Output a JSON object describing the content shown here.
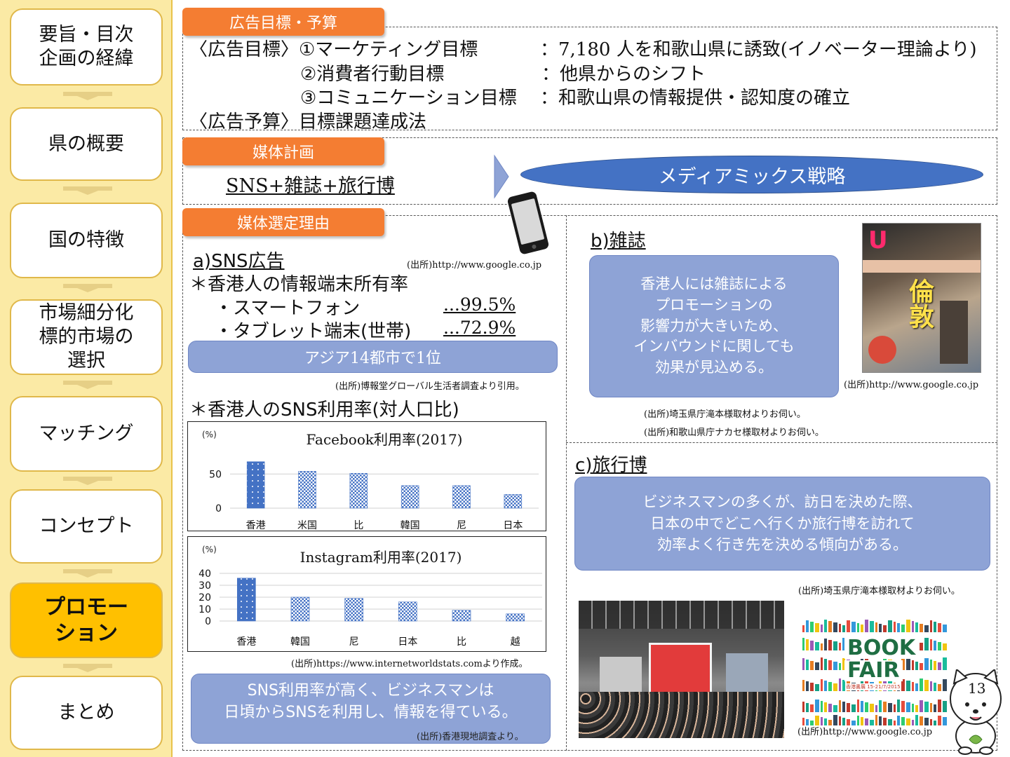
{
  "sidebar": {
    "items": [
      {
        "label": "要旨・目次\n企画の経緯",
        "active": false
      },
      {
        "label": "県の概要",
        "active": false
      },
      {
        "label": "国の特徴",
        "active": false
      },
      {
        "label": "市場細分化\n標的市場の\n選択",
        "active": false
      },
      {
        "label": "マッチング",
        "active": false
      },
      {
        "label": "コンセプト",
        "active": false
      },
      {
        "label": "プロモー\nション",
        "active": true
      },
      {
        "label": "まとめ",
        "active": false
      }
    ]
  },
  "goals": {
    "tag": "広告目標・予算",
    "row1_label": "〈広告目標〉①マーケティング目標",
    "row1_value": "：7,180 人を和歌山県に誘致(イノベーター理論より)",
    "row2_label": "②消費者行動目標",
    "row2_value": "：他県からのシフト",
    "row3_label": "③コミュニケーション目標",
    "row3_value": "：和歌山県の情報提供・認知度の確立",
    "row4": "〈広告予算〉目標課題達成法"
  },
  "media": {
    "tag": "媒体計画",
    "plan": "SNS+雑誌+旅行博",
    "strategy": "メディアミックス戦略"
  },
  "reasons": {
    "tag": "媒体選定理由",
    "sns": {
      "title": "a)SNS広告",
      "phone_source": "(出所)http://www.google.co.jp",
      "ownership_heading": "＊香港人の情報端末所有率",
      "smartphone_label": "・スマートフォン",
      "smartphone_value": "...99.5%",
      "tablet_label": "・タブレット端末(世帯)",
      "tablet_value": "...72.9%",
      "rank_box": "アジア14都市で1位",
      "rank_source": "(出所)博報堂グローバル生活者調査より引用。",
      "usage_heading": "＊香港人のSNS利用率(対人口比)",
      "chart_source": "(出所)https://www.internetworldstats.comより作成。",
      "summary": "SNS利用率が高く、ビジネスマンは\n日頃からSNSを利用し、情報を得ている。",
      "summary_source": "(出所)香港現地調査より。"
    },
    "magazine": {
      "title": "b)雑誌",
      "body": "香港人には雑誌による\nプロモーションの\n影響力が大きいため、\nインバウンドに関しても\n効果が見込める。",
      "image_source": "(出所)http://www.google.co.jp",
      "source1": "(出所)埼玉県庁滝本様取材よりお伺い。",
      "source2": "(出所)和歌山県庁ナカセ様取材よりお伺い。",
      "cover_title": "U",
      "cover_text": "倫敦"
    },
    "fair": {
      "title": "c)旅行博",
      "body": "ビジネスマンの多くが、訪日を決めた際、\n日本の中でどこへ行くか旅行博を訪れて\n効率よく行き先を決める傾向がある。",
      "source1": "(出所)埼玉県庁滝本様取材よりお伺い。",
      "image_source": "(出所)http://www.google.co.jp",
      "poster_line1": "BOOK",
      "poster_line2": "FAIR",
      "poster_sub": "香港書展 15-21/7/2015"
    }
  },
  "page_number": "13",
  "colors": {
    "accent_orange": "#f47d32",
    "sidebar_bg": "#fbeaa5",
    "active_nav": "#ffc000",
    "ellipse_blue": "#4472c4",
    "box_blue": "#8ea3d6"
  },
  "chart_data": [
    {
      "type": "bar",
      "title": "Facebook利用率(2017)",
      "unit_label": "(%)",
      "categories": [
        "香港",
        "米国",
        "比",
        "韓国",
        "尼",
        "日本"
      ],
      "values": [
        68,
        54,
        51,
        33,
        33,
        20
      ],
      "ylim": [
        0,
        80
      ],
      "yticks": [
        0,
        50
      ],
      "highlight_index": 0,
      "grid": true
    },
    {
      "type": "bar",
      "title": "Instagram利用率(2017)",
      "unit_label": "(%)",
      "categories": [
        "香港",
        "韓国",
        "尼",
        "日本",
        "比",
        "越"
      ],
      "values": [
        36,
        20,
        19,
        16,
        9,
        6
      ],
      "ylim": [
        0,
        40
      ],
      "yticks": [
        0,
        10,
        20,
        30,
        40
      ],
      "highlight_index": 0,
      "grid": true
    }
  ]
}
